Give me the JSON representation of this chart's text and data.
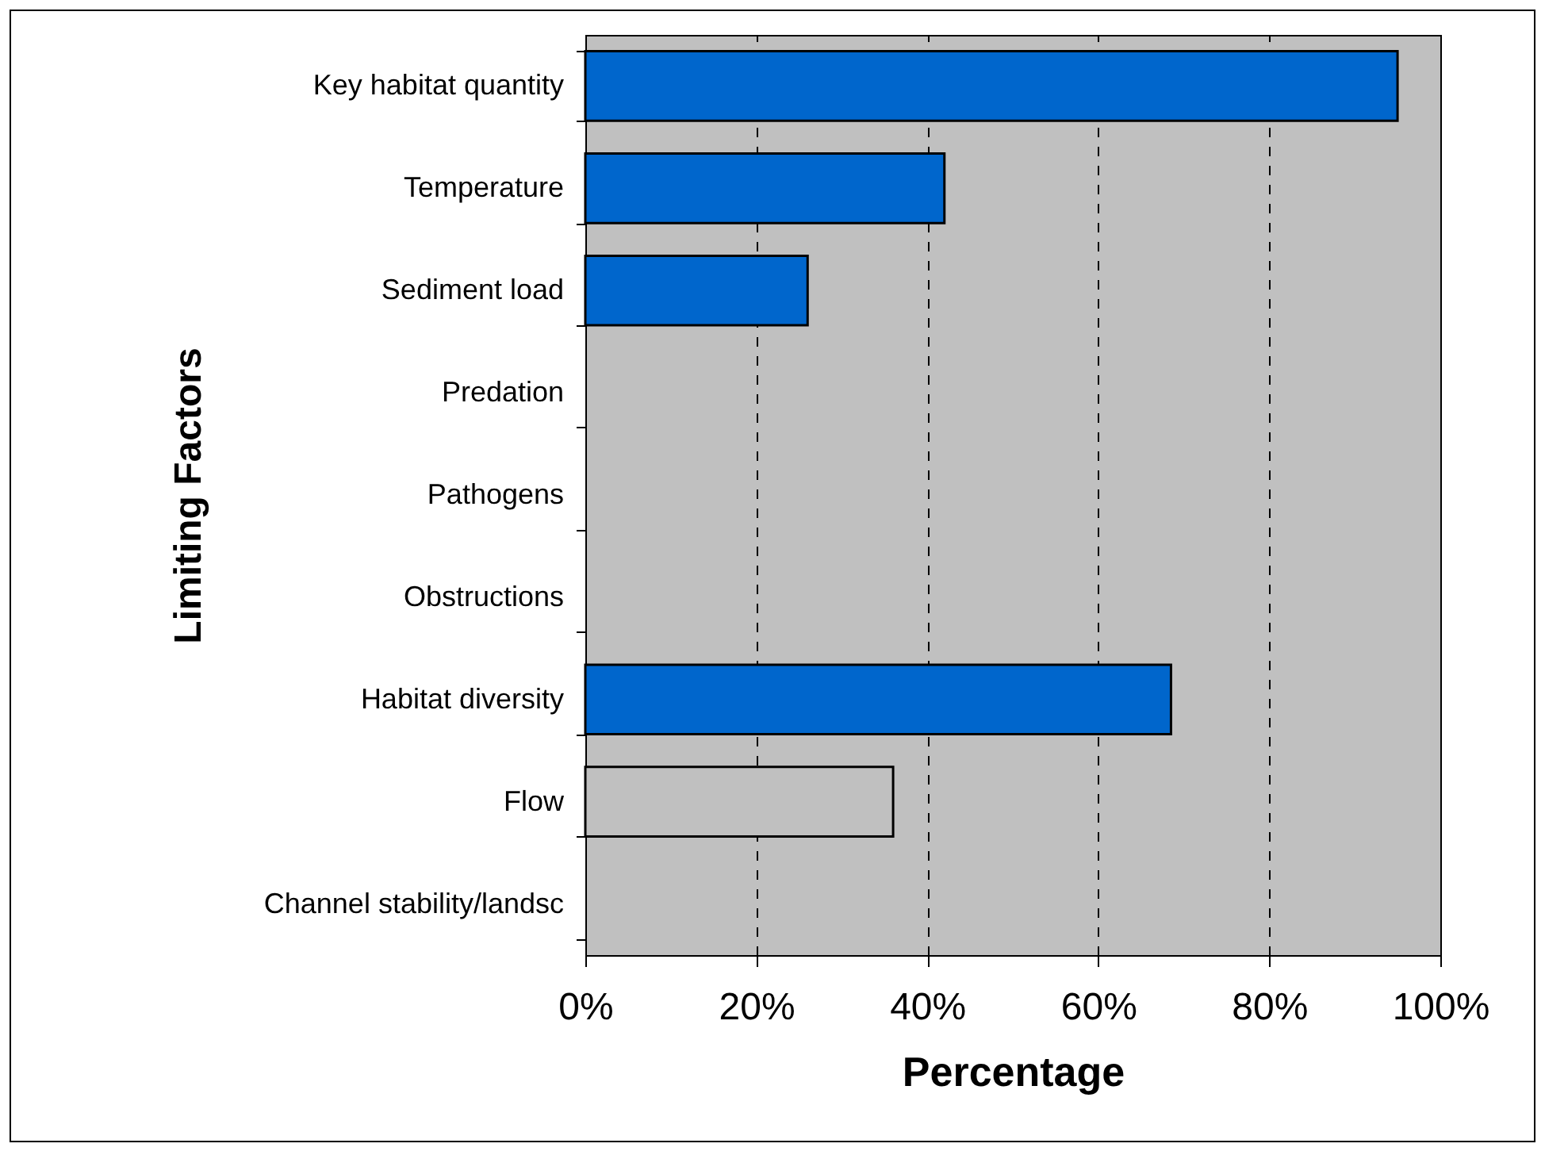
{
  "chart_data": {
    "type": "bar",
    "orientation": "horizontal",
    "categories": [
      "Key habitat quantity",
      "Temperature",
      "Sediment load",
      "Predation",
      "Pathogens",
      "Obstructions",
      "Habitat diversity",
      "Flow",
      "Channel stability/landsc"
    ],
    "values": [
      95,
      42,
      26,
      null,
      null,
      null,
      68.5,
      36,
      null
    ],
    "colors": [
      "#0066cc",
      "#0066cc",
      "#0066cc",
      "#0066cc",
      "#0066cc",
      "#0066cc",
      "#0066cc",
      "#c0c0c0",
      "#0066cc"
    ],
    "xlabel": "Percentage",
    "ylabel": "Limiting Factors",
    "xlim": [
      0,
      100
    ],
    "xticks": [
      {
        "value": 0,
        "label": "0%"
      },
      {
        "value": 20,
        "label": "20%"
      },
      {
        "value": 40,
        "label": "40%"
      },
      {
        "value": 60,
        "label": "60%"
      },
      {
        "value": 80,
        "label": "80%"
      },
      {
        "value": 100,
        "label": "100%"
      }
    ],
    "grid": "x"
  }
}
